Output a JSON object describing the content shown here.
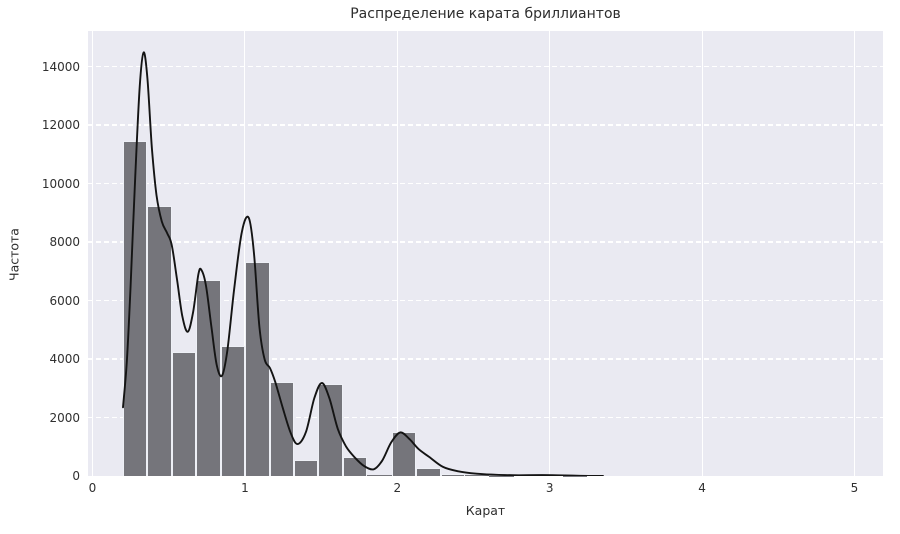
{
  "chart": {
    "title": "Распределение карата бриллиантов",
    "xlabel": "Карат",
    "ylabel": "Частота"
  },
  "chart_data": {
    "type": "histogram+kde",
    "title": "Распределение карата бриллиантов",
    "xlabel": "Карат",
    "ylabel": "Частота",
    "xlim": [
      -0.04,
      5.25
    ],
    "ylim": [
      0,
      15200
    ],
    "grid": "on",
    "x_ticks": [
      0,
      1,
      2,
      3,
      4,
      5
    ],
    "y_ticks": [
      0,
      2000,
      4000,
      6000,
      8000,
      10000,
      12000,
      14000
    ],
    "bins": {
      "start": 0.2,
      "width": 0.16033,
      "counts": [
        11450,
        9230,
        4250,
        6700,
        4440,
        7330,
        3220,
        530,
        3150,
        650,
        40,
        1490,
        270,
        70,
        25,
        10,
        20,
        25,
        8,
        0,
        0,
        0,
        0,
        0,
        0,
        0,
        0,
        0,
        0,
        1
      ]
    },
    "kde": {
      "points": [
        [
          0.2,
          2350
        ],
        [
          0.225,
          3900
        ],
        [
          0.25,
          6500
        ],
        [
          0.28,
          10200
        ],
        [
          0.31,
          13300
        ],
        [
          0.335,
          14480
        ],
        [
          0.36,
          13600
        ],
        [
          0.39,
          11200
        ],
        [
          0.42,
          9600
        ],
        [
          0.455,
          8700
        ],
        [
          0.49,
          8300
        ],
        [
          0.52,
          7900
        ],
        [
          0.555,
          6700
        ],
        [
          0.59,
          5450
        ],
        [
          0.625,
          4930
        ],
        [
          0.66,
          5600
        ],
        [
          0.695,
          6900
        ],
        [
          0.715,
          7040
        ],
        [
          0.745,
          6500
        ],
        [
          0.78,
          5100
        ],
        [
          0.815,
          3800
        ],
        [
          0.85,
          3430
        ],
        [
          0.885,
          4300
        ],
        [
          0.93,
          6400
        ],
        [
          0.98,
          8350
        ],
        [
          1.025,
          8830
        ],
        [
          1.06,
          7600
        ],
        [
          1.095,
          5100
        ],
        [
          1.13,
          3980
        ],
        [
          1.165,
          3690
        ],
        [
          1.2,
          3200
        ],
        [
          1.25,
          2300
        ],
        [
          1.3,
          1480
        ],
        [
          1.345,
          1090
        ],
        [
          1.4,
          1500
        ],
        [
          1.455,
          2650
        ],
        [
          1.505,
          3180
        ],
        [
          1.555,
          2650
        ],
        [
          1.61,
          1600
        ],
        [
          1.665,
          1000
        ],
        [
          1.72,
          640
        ],
        [
          1.78,
          350
        ],
        [
          1.845,
          230
        ],
        [
          1.9,
          520
        ],
        [
          1.96,
          1150
        ],
        [
          2.02,
          1490
        ],
        [
          2.08,
          1260
        ],
        [
          2.14,
          920
        ],
        [
          2.21,
          650
        ],
        [
          2.3,
          310
        ],
        [
          2.4,
          160
        ],
        [
          2.52,
          80
        ],
        [
          2.65,
          40
        ],
        [
          2.8,
          25
        ],
        [
          2.95,
          30
        ],
        [
          3.05,
          25
        ],
        [
          3.2,
          8
        ],
        [
          3.35,
          0
        ]
      ]
    },
    "colors": {
      "plot_background": "#eaeaf2",
      "bar_fill": "#75757b",
      "bar_edge": "#eef0f6",
      "kde_line": "#141414",
      "gridline": "#ffffff",
      "text": "#2e2e2e"
    }
  }
}
